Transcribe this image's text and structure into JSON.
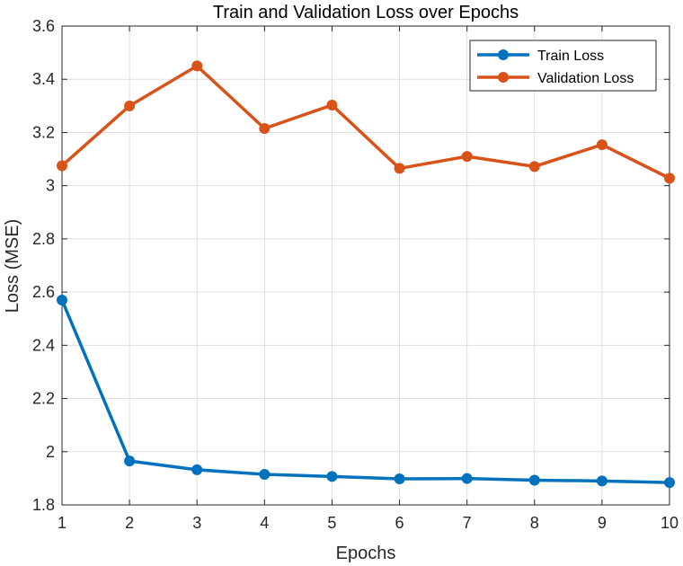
{
  "chart_data": {
    "type": "line",
    "title": "Train and Validation Loss over Epochs",
    "xlabel": "Epochs",
    "ylabel": "Loss (MSE)",
    "x": [
      1,
      2,
      3,
      4,
      5,
      6,
      7,
      8,
      9,
      10
    ],
    "xlim": [
      1,
      10
    ],
    "ylim": [
      1.8,
      3.6
    ],
    "xticks": [
      "1",
      "2",
      "3",
      "4",
      "5",
      "6",
      "7",
      "8",
      "9",
      "10"
    ],
    "yticks": [
      "1.8",
      "2",
      "2.2",
      "2.4",
      "2.6",
      "2.8",
      "3",
      "3.2",
      "3.4",
      "3.6"
    ],
    "grid": true,
    "legend_position": "top-right",
    "series": [
      {
        "name": "Train Loss",
        "color": "#0072BD",
        "values": [
          2.57,
          1.965,
          1.932,
          1.915,
          1.907,
          1.898,
          1.899,
          1.893,
          1.89,
          1.884
        ]
      },
      {
        "name": "Validation Loss",
        "color": "#D95319",
        "values": [
          3.075,
          3.3,
          3.45,
          3.215,
          3.303,
          3.065,
          3.11,
          3.072,
          3.154,
          3.028
        ]
      }
    ]
  }
}
